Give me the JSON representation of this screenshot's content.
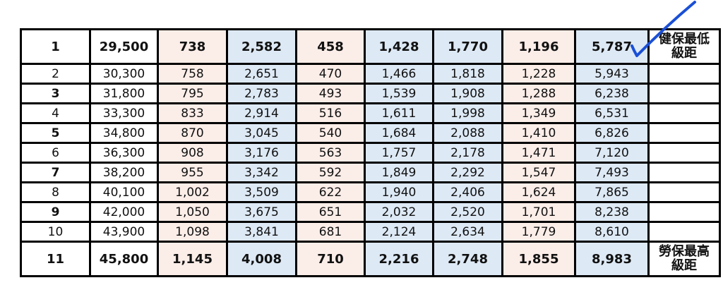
{
  "column_colors": [
    "white",
    "white",
    "pink",
    "blue",
    "pink",
    "blue",
    "blue",
    "pink",
    "blue",
    "white"
  ],
  "colors": {
    "pink": "#fbede8",
    "blue": "#dde9f5",
    "checkmark": "#1a4fd6"
  },
  "rows": [
    {
      "cells": [
        "1",
        "29,500",
        "738",
        "2,582",
        "458",
        "1,428",
        "1,770",
        "1,196",
        "5,787"
      ],
      "note": "健保最低級距"
    },
    {
      "cells": [
        "2",
        "30,300",
        "758",
        "2,651",
        "470",
        "1,466",
        "1,818",
        "1,228",
        "5,943"
      ],
      "note": ""
    },
    {
      "cells": [
        "3",
        "31,800",
        "795",
        "2,783",
        "493",
        "1,539",
        "1,908",
        "1,288",
        "6,238"
      ],
      "note": ""
    },
    {
      "cells": [
        "4",
        "33,300",
        "833",
        "2,914",
        "516",
        "1,611",
        "1,998",
        "1,349",
        "6,531"
      ],
      "note": ""
    },
    {
      "cells": [
        "5",
        "34,800",
        "870",
        "3,045",
        "540",
        "1,684",
        "2,088",
        "1,410",
        "6,826"
      ],
      "note": ""
    },
    {
      "cells": [
        "6",
        "36,300",
        "908",
        "3,176",
        "563",
        "1,757",
        "2,178",
        "1,471",
        "7,120"
      ],
      "note": ""
    },
    {
      "cells": [
        "7",
        "38,200",
        "955",
        "3,342",
        "592",
        "1,849",
        "2,292",
        "1,547",
        "7,493"
      ],
      "note": ""
    },
    {
      "cells": [
        "8",
        "40,100",
        "1,002",
        "3,509",
        "622",
        "1,940",
        "2,406",
        "1,624",
        "7,865"
      ],
      "note": ""
    },
    {
      "cells": [
        "9",
        "42,000",
        "1,050",
        "3,675",
        "651",
        "2,032",
        "2,520",
        "1,701",
        "8,238"
      ],
      "note": ""
    },
    {
      "cells": [
        "10",
        "43,900",
        "1,098",
        "3,841",
        "681",
        "2,124",
        "2,634",
        "1,779",
        "8,610"
      ],
      "note": ""
    },
    {
      "cells": [
        "11",
        "45,800",
        "1,145",
        "4,008",
        "710",
        "2,216",
        "2,748",
        "1,855",
        "8,983"
      ],
      "note": "勞保最高級距"
    }
  ]
}
